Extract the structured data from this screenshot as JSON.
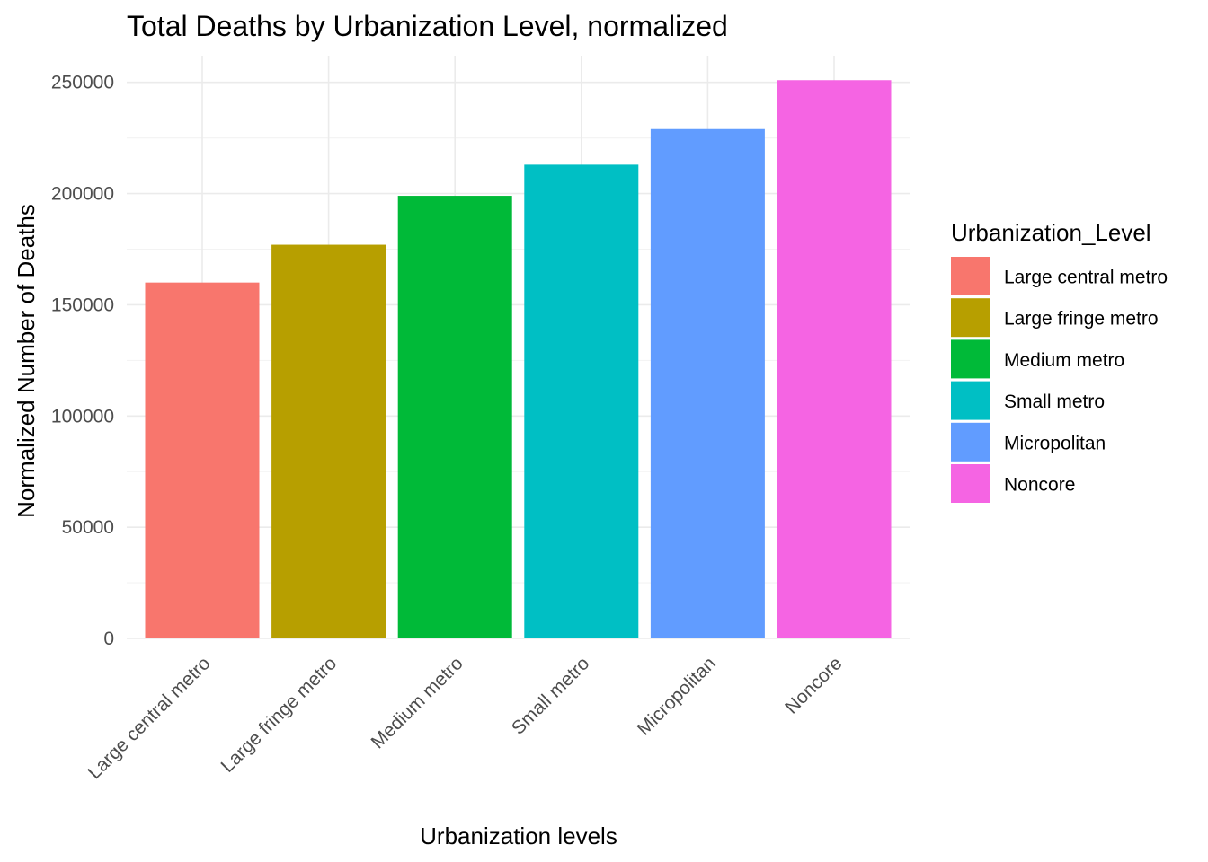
{
  "chart_data": {
    "type": "bar",
    "title": "Total Deaths by Urbanization Level, normalized",
    "xlabel": "Urbanization levels",
    "ylabel": "Normalized Number of Deaths",
    "categories": [
      "Large central metro",
      "Large fringe metro",
      "Medium metro",
      "Small metro",
      "Micropolitan",
      "Noncore"
    ],
    "values": [
      160000,
      177000,
      199000,
      213000,
      229000,
      251000
    ],
    "colors": [
      "#F8766D",
      "#B79F00",
      "#00BA38",
      "#00BFC4",
      "#619CFF",
      "#F564E3"
    ],
    "ylim": [
      0,
      262000
    ],
    "yticks": [
      0,
      50000,
      100000,
      150000,
      200000,
      250000
    ],
    "ytick_labels": [
      "0",
      "50000",
      "100000",
      "150000",
      "200000",
      "250000"
    ],
    "grid": true,
    "legend": {
      "title": "Urbanization_Level",
      "position": "right",
      "entries": [
        "Large central metro",
        "Large fringe metro",
        "Medium metro",
        "Small metro",
        "Micropolitan",
        "Noncore"
      ]
    }
  }
}
